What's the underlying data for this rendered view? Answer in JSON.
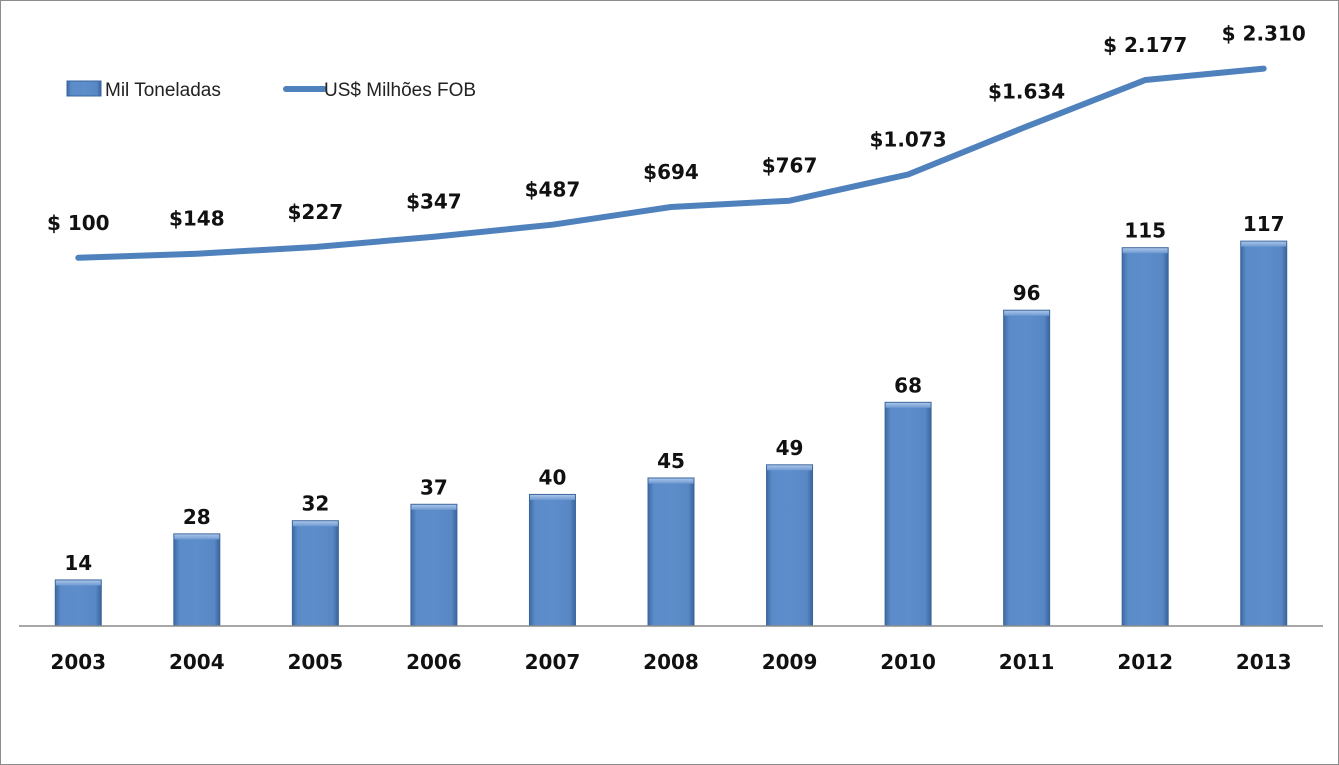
{
  "chart_data": {
    "type": "bar",
    "title": "",
    "xlabel": "",
    "ylabel": "",
    "categories": [
      "2003",
      "2004",
      "2005",
      "2006",
      "2007",
      "2008",
      "2009",
      "2010",
      "2011",
      "2012",
      "2013"
    ],
    "series": [
      {
        "name": "Mil Toneladas",
        "type": "bar",
        "values": [
          14,
          28,
          32,
          37,
          40,
          45,
          49,
          68,
          96,
          115,
          117
        ],
        "labels": [
          "14",
          "28",
          "32",
          "37",
          "40",
          "45",
          "49",
          "68",
          "96",
          "115",
          "117"
        ],
        "color": "#4f81bd",
        "ylim": [
          0,
          190
        ]
      },
      {
        "name": "US$ Milhões FOB",
        "type": "line",
        "values": [
          100,
          148,
          227,
          347,
          487,
          694,
          767,
          1073,
          1634,
          2177,
          2310
        ],
        "labels": [
          "$ 100",
          "$148",
          "$227",
          "$347",
          "$487",
          "$694",
          "$767",
          "$1.073",
          "$1.634",
          "$ 2.177",
          "$ 2.310"
        ],
        "color": "#4f81bd",
        "ylim": [
          -4200,
          3100
        ]
      }
    ],
    "legend": "top-left",
    "grid": false
  }
}
